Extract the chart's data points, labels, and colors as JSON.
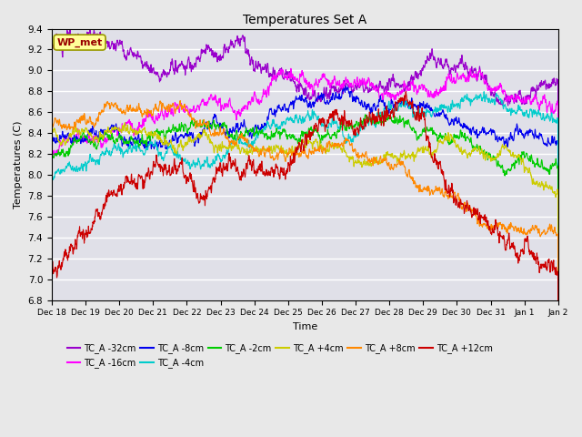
{
  "title": "Temperatures Set A",
  "xlabel": "Time",
  "ylabel": "Temperatures (C)",
  "ylim": [
    6.8,
    9.4
  ],
  "fig_bg_color": "#e8e8e8",
  "plot_bg_color": "#e0e0e8",
  "annotation_text": "WP_met",
  "annotation_box_color": "#ffff99",
  "annotation_text_color": "#990000",
  "series": [
    {
      "label": "TC_A -32cm",
      "color": "#9900cc"
    },
    {
      "label": "TC_A -16cm",
      "color": "#ff00ff"
    },
    {
      "label": "TC_A -8cm",
      "color": "#0000ee"
    },
    {
      "label": "TC_A -4cm",
      "color": "#00cccc"
    },
    {
      "label": "TC_A -2cm",
      "color": "#00cc00"
    },
    {
      "label": "TC_A +4cm",
      "color": "#cccc00"
    },
    {
      "label": "TC_A +8cm",
      "color": "#ff8800"
    },
    {
      "label": "TC_A +12cm",
      "color": "#cc0000"
    }
  ],
  "tick_labels": [
    "Dec 18",
    "Dec 19",
    "Dec 20",
    "Dec 21",
    "Dec 22",
    "Dec 23",
    "Dec 24",
    "Dec 25",
    "Dec 26",
    "Dec 27",
    "Dec 28",
    "Dec 29",
    "Dec 30",
    "Dec 31",
    "Jan 1",
    "Jan 2"
  ],
  "n_points": 2000
}
